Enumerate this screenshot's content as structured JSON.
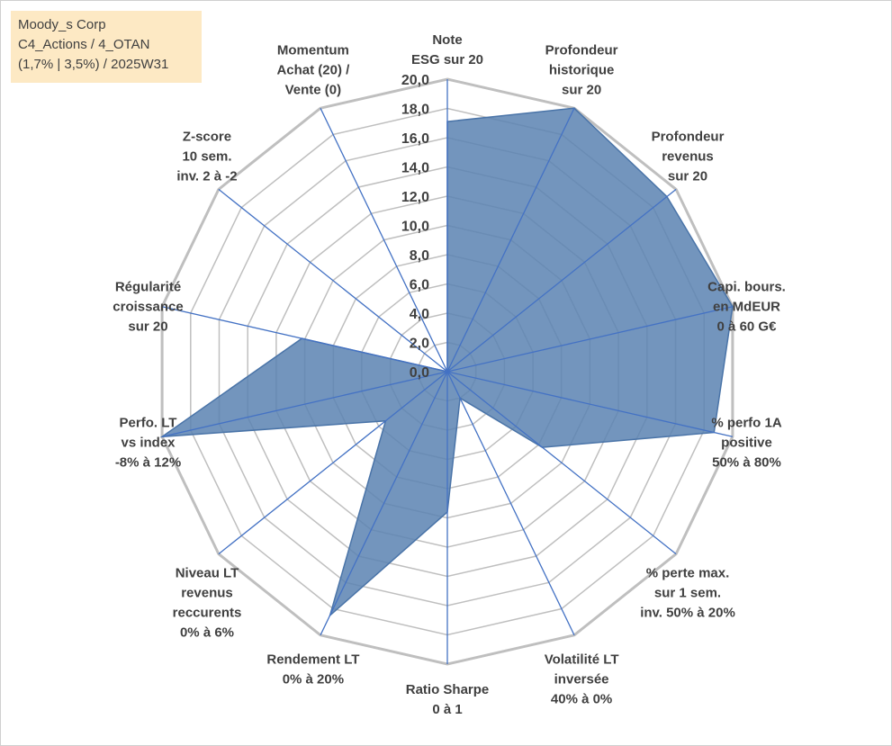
{
  "title_box": {
    "line1": "Moody_s Corp",
    "line2": "C4_Actions / 4_OTAN",
    "line3": "(1,7% | 3,5%) / 2025W31"
  },
  "colors": {
    "series_fill": "#5b83b1",
    "series_stroke": "#4a74a8",
    "spoke": "#4472c4",
    "ring": "#bfbfbf",
    "title_bg": "#fde9c4",
    "text": "#404040"
  },
  "chart_data": {
    "type": "radar",
    "rmin": 0,
    "rmax": 20,
    "tick_step": 2,
    "tick_labels": [
      "0,0",
      "2,0",
      "4,0",
      "6,0",
      "8,0",
      "10,0",
      "12,0",
      "14,0",
      "16,0",
      "18,0",
      "20,0"
    ],
    "categories": [
      [
        "Note",
        "ESG sur 20"
      ],
      [
        "Profondeur",
        "historique",
        "sur 20"
      ],
      [
        "Profondeur",
        "revenus",
        "sur 20"
      ],
      [
        "Capi. bours.",
        "en MdEUR",
        "0 à 60 G€"
      ],
      [
        "% perfo 1A",
        "positive",
        "50% à 80%"
      ],
      [
        "% perte max.",
        "sur 1 sem.",
        "inv. 50% à 20%"
      ],
      [
        "Volatilité LT",
        "inversée",
        "40% à 0%"
      ],
      [
        "Ratio Sharpe",
        "0 à 1"
      ],
      [
        "Rendement LT",
        "0% à 20%"
      ],
      [
        "Niveau LT",
        "revenus",
        "reccurents",
        "0% à 6%"
      ],
      [
        "Perfo. LT",
        "vs index",
        "-8% à 12%"
      ],
      [
        "Régularité",
        "croissance",
        "sur 20"
      ],
      [
        "Z-score",
        "10 sem.",
        "inv. 2 à -2"
      ],
      [
        "Momentum",
        "Achat (20) /",
        "Vente (0)"
      ]
    ],
    "series": [
      {
        "values": [
          17.1,
          20.0,
          19.2,
          20.0,
          18.7,
          8.3,
          2.0,
          9.6,
          18.5,
          5.4,
          20.0,
          10.2,
          0.0,
          0.0
        ]
      }
    ]
  }
}
